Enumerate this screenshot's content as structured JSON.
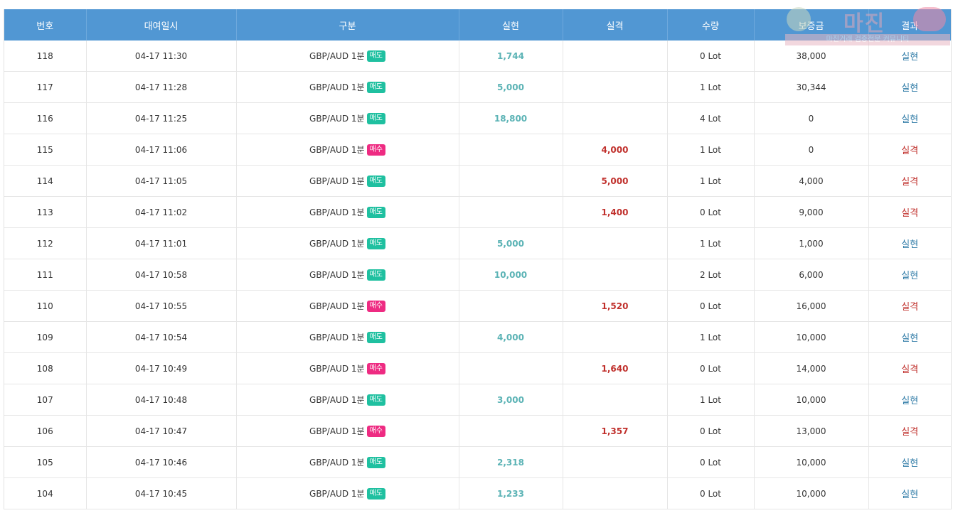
{
  "headers": [
    "번호",
    "대여일시",
    "구분",
    "실현",
    "실격",
    "수량",
    "보증금",
    "결과"
  ],
  "rows": [
    {
      "no": "118",
      "time": "04-17 11:30",
      "pair": "GBP/AUD 1분",
      "side": "매도",
      "gain": "1,744",
      "loss": "",
      "qty": "0 Lot",
      "deposit": "38,000",
      "result": "실현"
    },
    {
      "no": "117",
      "time": "04-17 11:28",
      "pair": "GBP/AUD 1분",
      "side": "매도",
      "gain": "5,000",
      "loss": "",
      "qty": "1 Lot",
      "deposit": "30,344",
      "result": "실현"
    },
    {
      "no": "116",
      "time": "04-17 11:25",
      "pair": "GBP/AUD 1분",
      "side": "매도",
      "gain": "18,800",
      "loss": "",
      "qty": "4 Lot",
      "deposit": "0",
      "result": "실현"
    },
    {
      "no": "115",
      "time": "04-17 11:06",
      "pair": "GBP/AUD 1분",
      "side": "매수",
      "gain": "",
      "loss": "4,000",
      "qty": "1 Lot",
      "deposit": "0",
      "result": "실격"
    },
    {
      "no": "114",
      "time": "04-17 11:05",
      "pair": "GBP/AUD 1분",
      "side": "매도",
      "gain": "",
      "loss": "5,000",
      "qty": "1 Lot",
      "deposit": "4,000",
      "result": "실격"
    },
    {
      "no": "113",
      "time": "04-17 11:02",
      "pair": "GBP/AUD 1분",
      "side": "매도",
      "gain": "",
      "loss": "1,400",
      "qty": "0 Lot",
      "deposit": "9,000",
      "result": "실격"
    },
    {
      "no": "112",
      "time": "04-17 11:01",
      "pair": "GBP/AUD 1분",
      "side": "매도",
      "gain": "5,000",
      "loss": "",
      "qty": "1 Lot",
      "deposit": "1,000",
      "result": "실현"
    },
    {
      "no": "111",
      "time": "04-17 10:58",
      "pair": "GBP/AUD 1분",
      "side": "매도",
      "gain": "10,000",
      "loss": "",
      "qty": "2 Lot",
      "deposit": "6,000",
      "result": "실현"
    },
    {
      "no": "110",
      "time": "04-17 10:55",
      "pair": "GBP/AUD 1분",
      "side": "매수",
      "gain": "",
      "loss": "1,520",
      "qty": "0 Lot",
      "deposit": "16,000",
      "result": "실격"
    },
    {
      "no": "109",
      "time": "04-17 10:54",
      "pair": "GBP/AUD 1분",
      "side": "매도",
      "gain": "4,000",
      "loss": "",
      "qty": "1 Lot",
      "deposit": "10,000",
      "result": "실현"
    },
    {
      "no": "108",
      "time": "04-17 10:49",
      "pair": "GBP/AUD 1분",
      "side": "매수",
      "gain": "",
      "loss": "1,640",
      "qty": "0 Lot",
      "deposit": "14,000",
      "result": "실격"
    },
    {
      "no": "107",
      "time": "04-17 10:48",
      "pair": "GBP/AUD 1분",
      "side": "매도",
      "gain": "3,000",
      "loss": "",
      "qty": "1 Lot",
      "deposit": "10,000",
      "result": "실현"
    },
    {
      "no": "106",
      "time": "04-17 10:47",
      "pair": "GBP/AUD 1분",
      "side": "매수",
      "gain": "",
      "loss": "1,357",
      "qty": "0 Lot",
      "deposit": "13,000",
      "result": "실격"
    },
    {
      "no": "105",
      "time": "04-17 10:46",
      "pair": "GBP/AUD 1분",
      "side": "매도",
      "gain": "2,318",
      "loss": "",
      "qty": "0 Lot",
      "deposit": "10,000",
      "result": "실현"
    },
    {
      "no": "104",
      "time": "04-17 10:45",
      "pair": "GBP/AUD 1분",
      "side": "매도",
      "gain": "1,233",
      "loss": "",
      "qty": "0 Lot",
      "deposit": "10,000",
      "result": "실현"
    }
  ],
  "watermark": {
    "main": "마진",
    "sub": "마진거래 검증전문 커뮤니티"
  },
  "colors": {
    "header_bg": "#5197d3",
    "gain": "#5bb3b5",
    "loss": "#c0302c",
    "sell_badge": "#1fc0a0",
    "buy_badge": "#ee2b82",
    "result_gain": "#2e7aa6"
  }
}
